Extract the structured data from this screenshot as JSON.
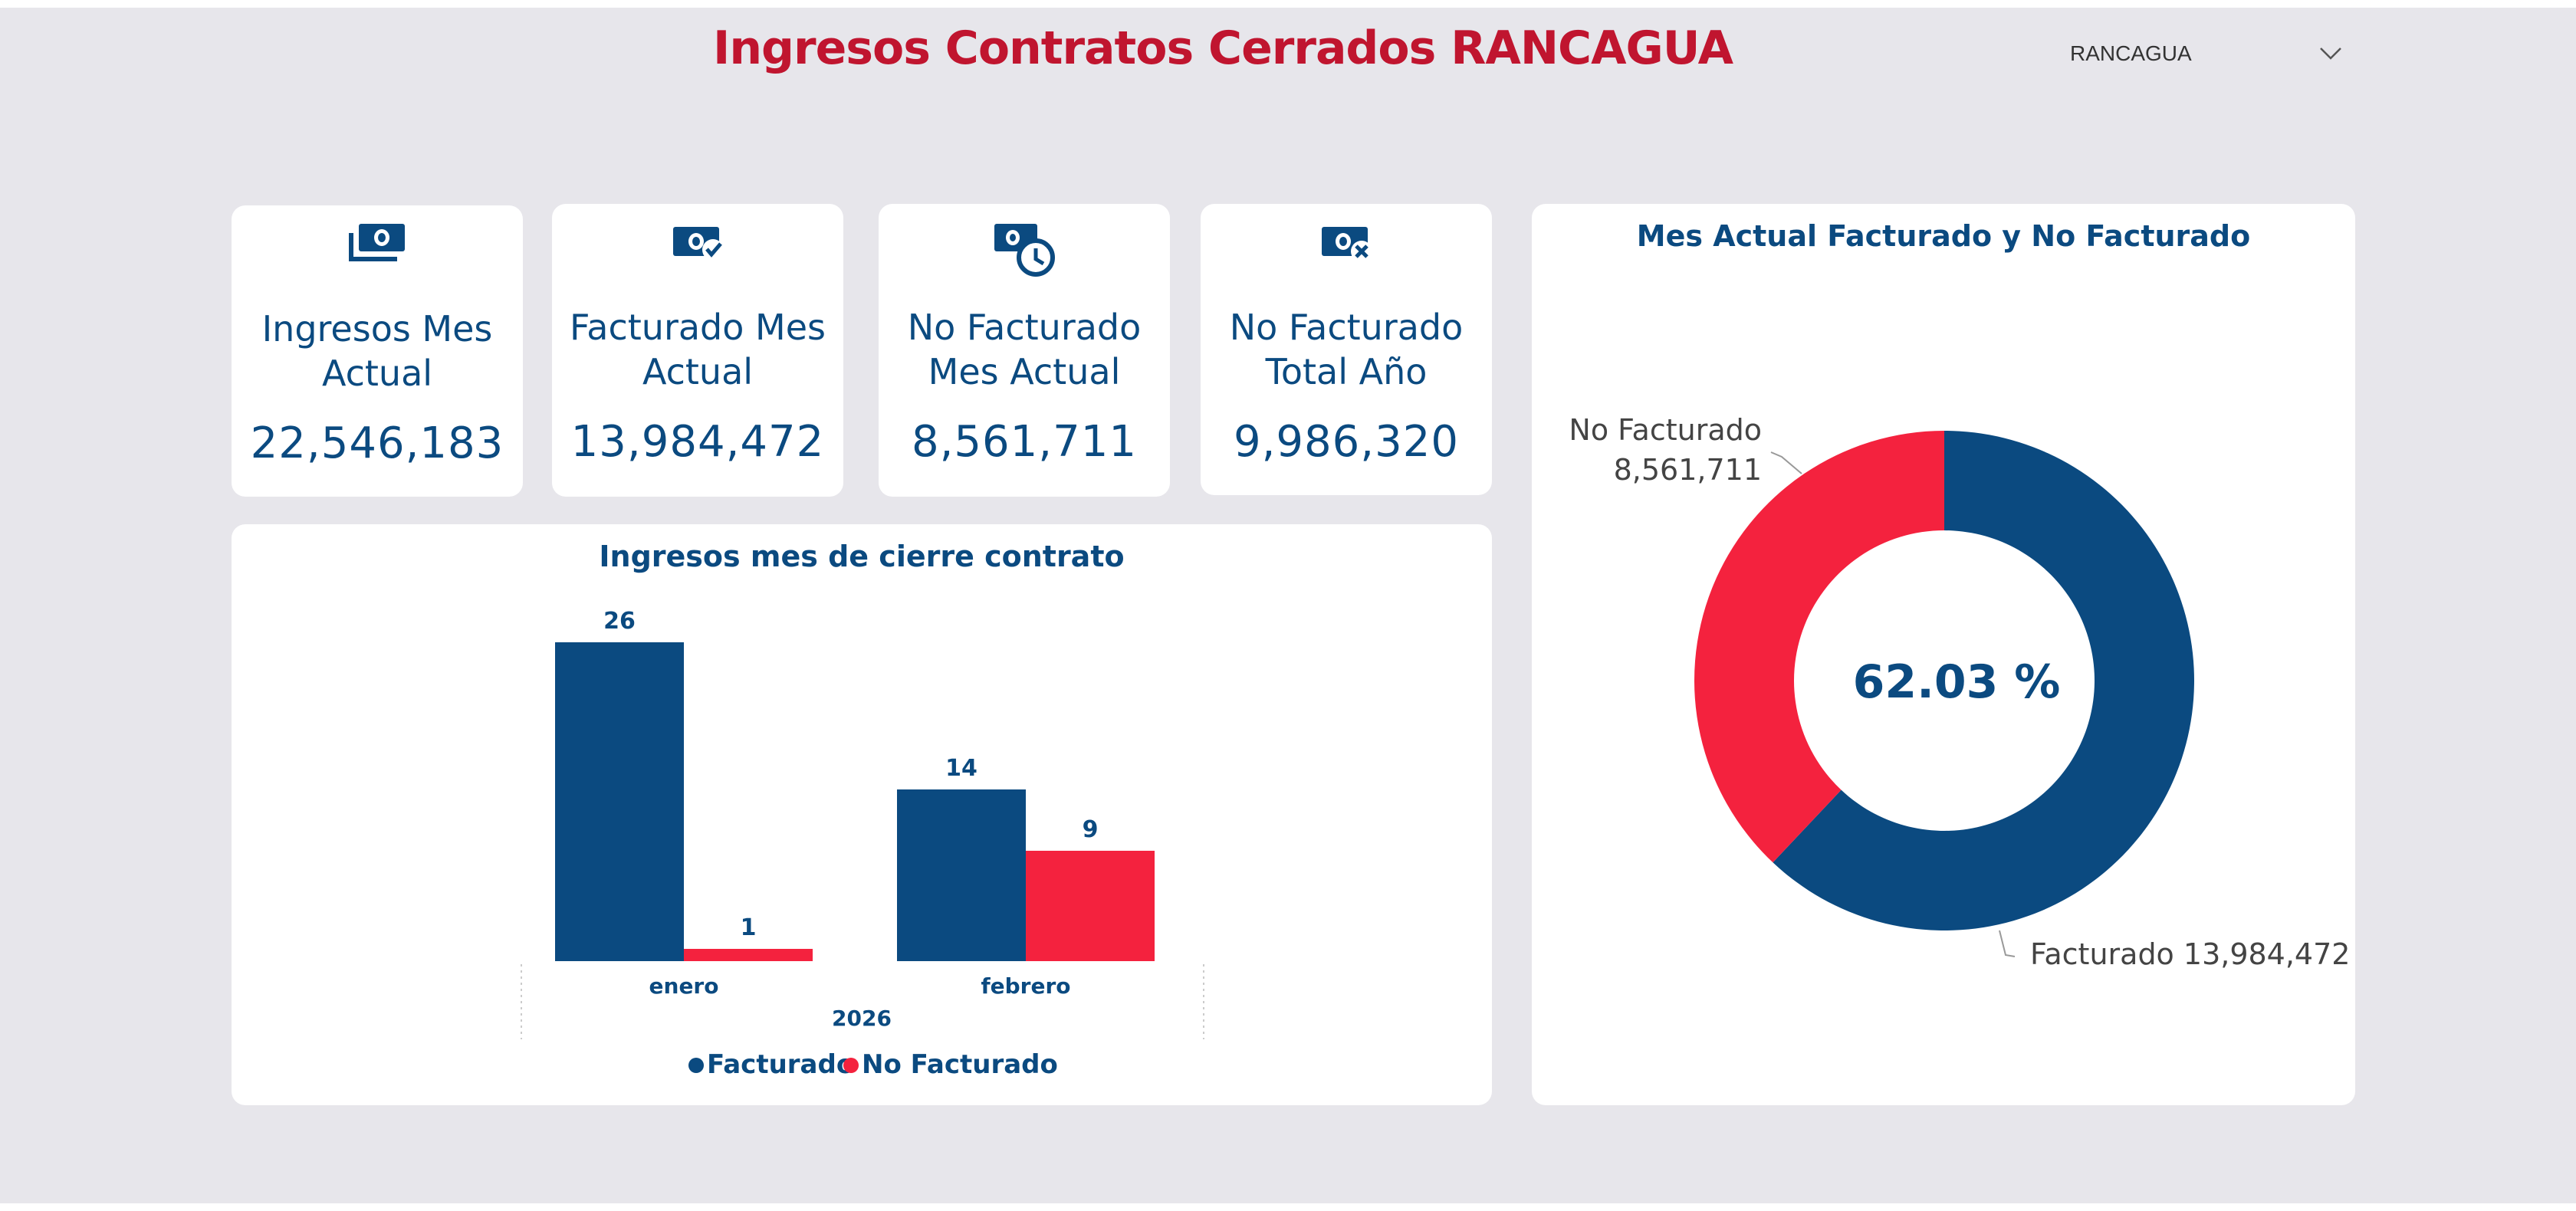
{
  "header": {
    "title": "Ingresos Contratos Cerrados  RANCAGUA",
    "slicer_value": "RANCAGUA"
  },
  "kpis": [
    {
      "icon": "money-stack-icon",
      "label": "Ingresos Mes Actual",
      "value": "22,546,183"
    },
    {
      "icon": "money-check-icon",
      "label": "Facturado Mes Actual",
      "value": "13,984,472"
    },
    {
      "icon": "money-clock-icon",
      "label": "No Facturado Mes Actual",
      "value": "8,561,711"
    },
    {
      "icon": "money-x-icon",
      "label": "No Facturado Total Año",
      "value": "9,986,320"
    }
  ],
  "colors": {
    "facturado": "#0b4a80",
    "no_facturado": "#f4223e",
    "title": "#c0152f"
  },
  "bar_chart": {
    "title": "Ingresos mes de cierre contrato",
    "legend": [
      "Facturado",
      "No Facturado"
    ]
  },
  "donut_chart": {
    "title": "Mes Actual Facturado y No Facturado",
    "center_label": "62.03 %",
    "no_facturado_label": "No Facturado",
    "no_facturado_value": "8,561,711",
    "facturado_label": "Facturado 13,984,472"
  },
  "chart_data": [
    {
      "type": "bar",
      "title": "Ingresos mes de cierre contrato",
      "categories": [
        "enero",
        "febrero"
      ],
      "group_label": "2026",
      "series": [
        {
          "name": "Facturado",
          "values": [
            26,
            14
          ]
        },
        {
          "name": "No Facturado",
          "values": [
            1,
            9
          ]
        }
      ],
      "ylim": [
        0,
        26
      ],
      "legend_position": "bottom"
    },
    {
      "type": "pie",
      "title": "Mes Actual Facturado y No Facturado",
      "labels": [
        "Facturado",
        "No Facturado"
      ],
      "values": [
        13984472,
        8561711
      ],
      "center_text": "62.03 %"
    }
  ]
}
